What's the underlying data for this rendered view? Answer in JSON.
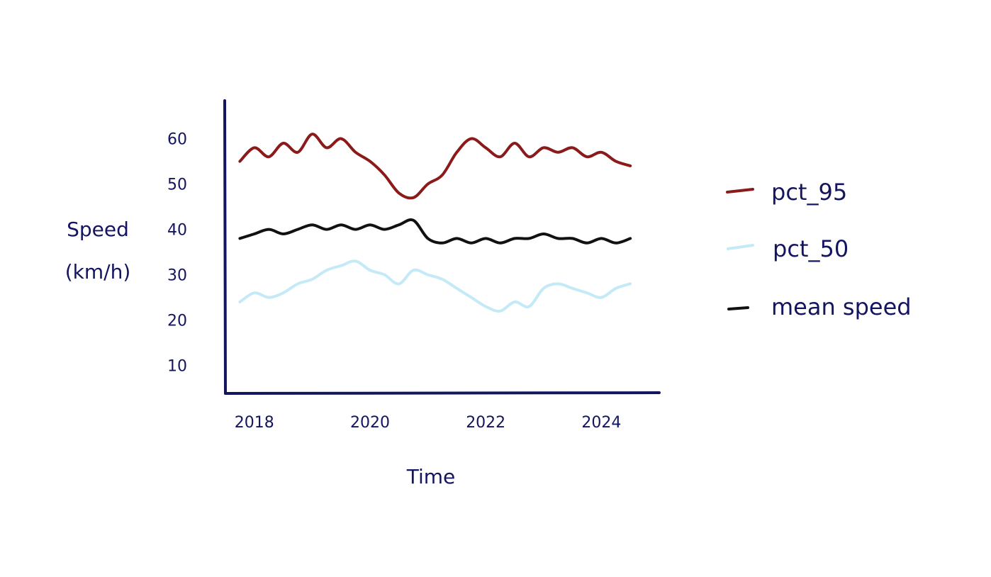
{
  "chart_data": {
    "type": "line",
    "xlabel": "Time",
    "ylabel_lines": [
      "Speed",
      "(km/h)"
    ],
    "x_ticks": [
      "2018",
      "2020",
      "2022",
      "2024"
    ],
    "y_ticks": [
      "10",
      "20",
      "30",
      "40",
      "50",
      "60"
    ],
    "xlim": [
      2017.5,
      2025.0
    ],
    "ylim": [
      4,
      68
    ],
    "grid": false,
    "legend_position": "right",
    "x": [
      2017.75,
      2018.0,
      2018.25,
      2018.5,
      2018.75,
      2019.0,
      2019.25,
      2019.5,
      2019.75,
      2020.0,
      2020.25,
      2020.5,
      2020.75,
      2021.0,
      2021.25,
      2021.5,
      2021.75,
      2022.0,
      2022.25,
      2022.5,
      2022.75,
      2023.0,
      2023.25,
      2023.5,
      2023.75,
      2024.0,
      2024.25,
      2024.5
    ],
    "series": [
      {
        "name": "pct_95",
        "color": "#8b1a1a",
        "values": [
          55,
          58,
          56,
          59,
          57,
          61,
          58,
          60,
          57,
          55,
          52,
          48,
          47,
          50,
          52,
          57,
          60,
          58,
          56,
          59,
          56,
          58,
          57,
          58,
          56,
          57,
          55,
          54
        ]
      },
      {
        "name": "pct_50",
        "color": "#c5eaf7",
        "values": [
          24,
          26,
          25,
          26,
          28,
          29,
          31,
          32,
          33,
          31,
          30,
          28,
          31,
          30,
          29,
          27,
          25,
          23,
          22,
          24,
          23,
          27,
          28,
          27,
          26,
          25,
          27,
          28
        ]
      },
      {
        "name": "mean speed",
        "color": "#111111",
        "values": [
          38,
          39,
          40,
          39,
          40,
          41,
          40,
          41,
          40,
          41,
          40,
          41,
          42,
          38,
          37,
          38,
          37,
          38,
          37,
          38,
          38,
          39,
          38,
          38,
          37,
          38,
          37,
          38
        ]
      }
    ]
  }
}
